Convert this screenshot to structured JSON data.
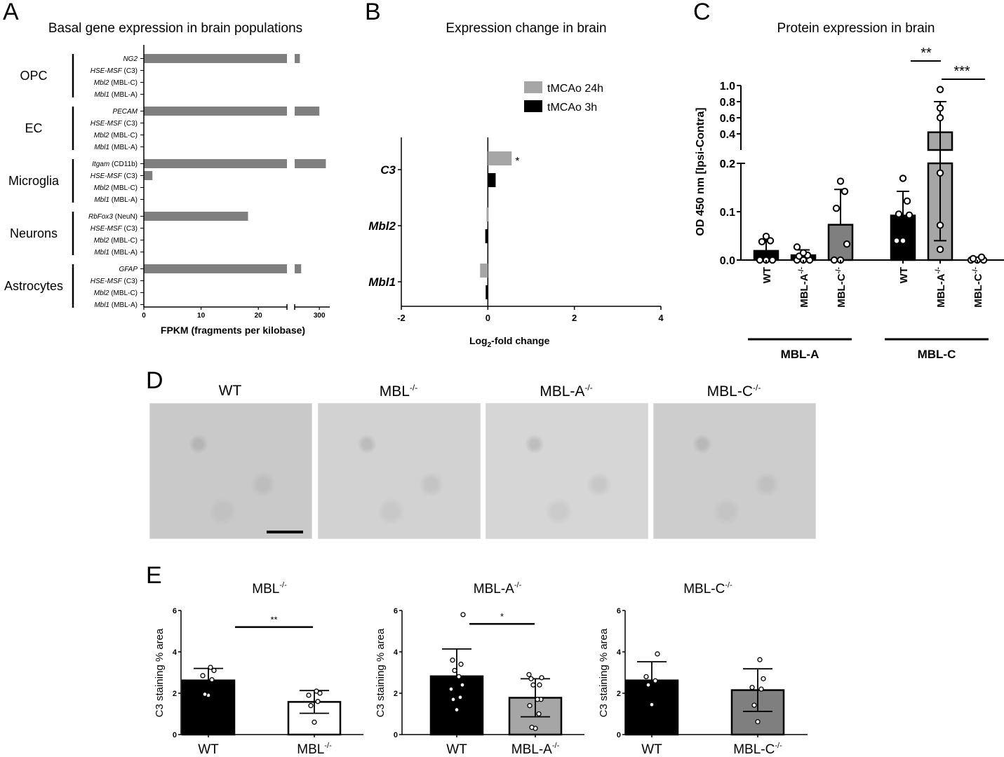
{
  "panels": {
    "A": {
      "letter": "A",
      "title": "Basal gene expression in brain populations"
    },
    "B": {
      "letter": "B",
      "title": "Expression change in brain"
    },
    "C": {
      "letter": "C",
      "title": "Protein expression in brain"
    },
    "D": {
      "letter": "D"
    },
    "E": {
      "letter": "E"
    }
  },
  "chart_data": [
    {
      "id": "A",
      "type": "bar",
      "orientation": "horizontal",
      "title": "Basal gene expression in brain populations",
      "xlabel": "FPKM (fragments per kilobase)",
      "ylabel": "",
      "x_ticks": [
        "0",
        "10",
        "20",
        "300"
      ],
      "x_axis_break": "between 25 and ~260",
      "groups": [
        {
          "name": "OPC",
          "rows": [
            {
              "gene": "NG2",
              "suffix": "",
              "value": 270
            },
            {
              "gene": "HSE-MSF",
              "suffix": "(C3)",
              "value": 0
            },
            {
              "gene": "Mbl2",
              "suffix": "(MBL-C)",
              "value": 0
            },
            {
              "gene": "Mbl1",
              "suffix": "(MBL-A)",
              "value": 0
            }
          ]
        },
        {
          "name": "EC",
          "rows": [
            {
              "gene": "PECAM",
              "suffix": "",
              "value": 300
            },
            {
              "gene": "HSE-MSF",
              "suffix": "(C3)",
              "value": 0
            },
            {
              "gene": "Mbl2",
              "suffix": "(MBL-C)",
              "value": 0
            },
            {
              "gene": "Mbl1",
              "suffix": "(MBL-A)",
              "value": 0
            }
          ]
        },
        {
          "name": "Microglia",
          "rows": [
            {
              "gene": "Itgam",
              "suffix": "(CD11b)",
              "value": 310
            },
            {
              "gene": "HSE-MSF",
              "suffix": "(C3)",
              "value": 1.5
            },
            {
              "gene": "Mbl2",
              "suffix": "(MBL-C)",
              "value": 0
            },
            {
              "gene": "Mbl1",
              "suffix": "(MBL-A)",
              "value": 0
            }
          ]
        },
        {
          "name": "Neurons",
          "rows": [
            {
              "gene": "RbFox3",
              "suffix": "(NeuN)",
              "value": 18.2
            },
            {
              "gene": "HSE-MSF",
              "suffix": "(C3)",
              "value": 0
            },
            {
              "gene": "Mbl2",
              "suffix": "(MBL-C)",
              "value": 0
            },
            {
              "gene": "Mbl1",
              "suffix": "(MBL-A)",
              "value": 0
            }
          ]
        },
        {
          "name": "Astrocytes",
          "rows": [
            {
              "gene": "GFAP",
              "suffix": "",
              "value": 272
            },
            {
              "gene": "HSE-MSF",
              "suffix": "(C3)",
              "value": 0
            },
            {
              "gene": "Mbl2",
              "suffix": "(MBL-C)",
              "value": 0
            },
            {
              "gene": "Mbl1",
              "suffix": "(MBL-A)",
              "value": 0
            }
          ]
        }
      ],
      "bar_color": "#7f7f7f"
    },
    {
      "id": "B",
      "type": "bar",
      "orientation": "horizontal",
      "title": "Expression change in brain",
      "xlabel": "Log2-fold change",
      "xlabel_main": "Log",
      "xlabel_sub": "2",
      "xlabel_rest": "-fold change",
      "xlim": [
        -2,
        4
      ],
      "x_ticks": [
        "-2",
        "0",
        "2",
        "4"
      ],
      "categories": [
        "C3",
        "Mbl2",
        "Mbl1"
      ],
      "series": [
        {
          "name": "tMCAo 24h",
          "color": "#a6a6a6",
          "values": [
            0.55,
            -0.03,
            -0.18
          ]
        },
        {
          "name": "tMCAo 3h",
          "color": "#000000",
          "values": [
            0.18,
            -0.06,
            -0.05
          ]
        }
      ],
      "annotations": [
        {
          "category": "C3",
          "series": "tMCAo 24h",
          "text": "*"
        }
      ],
      "legend_position": "upper right"
    },
    {
      "id": "C",
      "type": "bar",
      "title": "Protein expression in brain",
      "ylabel": "OD 450 nm [Ipsi-Contra]",
      "y_ticks_lower": [
        "0.0",
        "0.1",
        "0.2"
      ],
      "y_ticks_upper": [
        "0.2",
        "0.4",
        "0.6",
        "0.8",
        "1.0"
      ],
      "y_axis_break": "between 0.2 and 0.2",
      "groups": [
        {
          "name": "MBL-A",
          "bars": [
            {
              "label": "WT",
              "sup": "",
              "mean": 0.019,
              "err": 0.022,
              "color": "#000000",
              "points": [
                0.0,
                0.0,
                0.0,
                0.038,
                0.04,
                0.049
              ]
            },
            {
              "label": "MBL-A",
              "sup": "-/-",
              "mean": 0.01,
              "err": 0.011,
              "color": "#000000",
              "points": [
                0.0,
                0.0,
                0.0,
                0.008,
                0.01,
                0.015,
                0.027
              ]
            },
            {
              "label": "MBL-C",
              "sup": "-/-",
              "mean": 0.073,
              "err": 0.073,
              "color": "#7f7f7f",
              "points": [
                0.0,
                0.0,
                0.033,
                0.107,
                0.142,
                0.163
              ]
            }
          ]
        },
        {
          "name": "MBL-C",
          "bars": [
            {
              "label": "WT",
              "sup": "",
              "mean": 0.092,
              "err": 0.05,
              "color": "#000000",
              "points": [
                0.04,
                0.04,
                0.093,
                0.095,
                0.122,
                0.169
              ]
            },
            {
              "label": "MBL-A",
              "sup": "-/-",
              "mean": 0.42,
              "err": 0.38,
              "color": "#a6a6a6",
              "points": [
                0.022,
                0.072,
                0.18,
                0.6,
                0.72,
                0.95
              ]
            },
            {
              "label": "MBL-C",
              "sup": "-/-",
              "mean": 0.0,
              "err": 0.0,
              "color": "#7f7f7f",
              "points": [
                0.0,
                0.0,
                0.0,
                0.003,
                0.006
              ]
            }
          ]
        }
      ],
      "significance": [
        {
          "from": "MBL-C WT",
          "to": "MBL-C MBL-A-/-",
          "text": "**"
        },
        {
          "from": "MBL-C MBL-A-/-",
          "to": "MBL-C MBL-C-/-",
          "text": "***"
        }
      ]
    },
    {
      "id": "E1",
      "type": "bar",
      "title": "MBL-/-",
      "title_main": "MBL",
      "title_sup": "-/-",
      "ylabel": "C3 staining % area",
      "ylim": [
        0,
        6
      ],
      "y_ticks": [
        "0",
        "2",
        "4",
        "6"
      ],
      "bars": [
        {
          "label": "WT",
          "sup": "",
          "mean": 2.62,
          "err": 0.58,
          "color": "#000000",
          "points": [
            1.9,
            1.95,
            2.65,
            2.85,
            3.1,
            3.25
          ]
        },
        {
          "label": "MBL",
          "sup": "-/-",
          "mean": 1.58,
          "err": 0.55,
          "color": "#ffffff",
          "points": [
            0.6,
            1.4,
            1.6,
            1.9,
            2.0,
            2.1
          ]
        }
      ],
      "significance": {
        "text": "**",
        "y": 5.2
      }
    },
    {
      "id": "E2",
      "type": "bar",
      "title": "MBL-A-/-",
      "title_main": "MBL-A",
      "title_sup": "-/-",
      "ylabel": "C3 staining % area",
      "ylim": [
        0,
        6
      ],
      "y_ticks": [
        "0",
        "2",
        "4",
        "6"
      ],
      "bars": [
        {
          "label": "WT",
          "sup": "",
          "mean": 2.82,
          "err": 1.32,
          "color": "#000000",
          "points": [
            1.2,
            1.7,
            1.8,
            2.2,
            2.4,
            2.8,
            3.1,
            3.4,
            3.6,
            5.8
          ]
        },
        {
          "label": "MBL-A",
          "sup": "-/-",
          "mean": 1.78,
          "err": 0.92,
          "color": "#a6a6a6",
          "points": [
            0.3,
            0.35,
            1.0,
            1.4,
            1.7,
            1.7,
            2.4,
            2.4,
            2.7,
            2.75,
            2.9
          ]
        }
      ],
      "significance": {
        "text": "*",
        "y": 5.35
      }
    },
    {
      "id": "E3",
      "type": "bar",
      "title": "MBL-C-/-",
      "title_main": "MBL-C",
      "title_sup": "-/-",
      "ylabel": "C3 staining % area",
      "ylim": [
        0,
        6
      ],
      "y_ticks": [
        "0",
        "2",
        "4",
        "6"
      ],
      "bars": [
        {
          "label": "WT",
          "sup": "",
          "mean": 2.62,
          "err": 0.9,
          "color": "#000000",
          "points": [
            1.45,
            2.4,
            2.6,
            2.8,
            3.9
          ]
        },
        {
          "label": "MBL-C",
          "sup": "-/-",
          "mean": 2.15,
          "err": 1.03,
          "color": "#7f7f7f",
          "points": [
            0.62,
            1.42,
            2.2,
            2.28,
            2.7,
            3.62
          ]
        }
      ],
      "significance": null
    }
  ],
  "micrographs": [
    {
      "label_main": "WT",
      "label_sup": "",
      "has_scale_bar": true
    },
    {
      "label_main": "MBL",
      "label_sup": "-/-",
      "has_scale_bar": false
    },
    {
      "label_main": "MBL-A",
      "label_sup": "-/-",
      "has_scale_bar": false
    },
    {
      "label_main": "MBL-C",
      "label_sup": "-/-",
      "has_scale_bar": false
    }
  ]
}
